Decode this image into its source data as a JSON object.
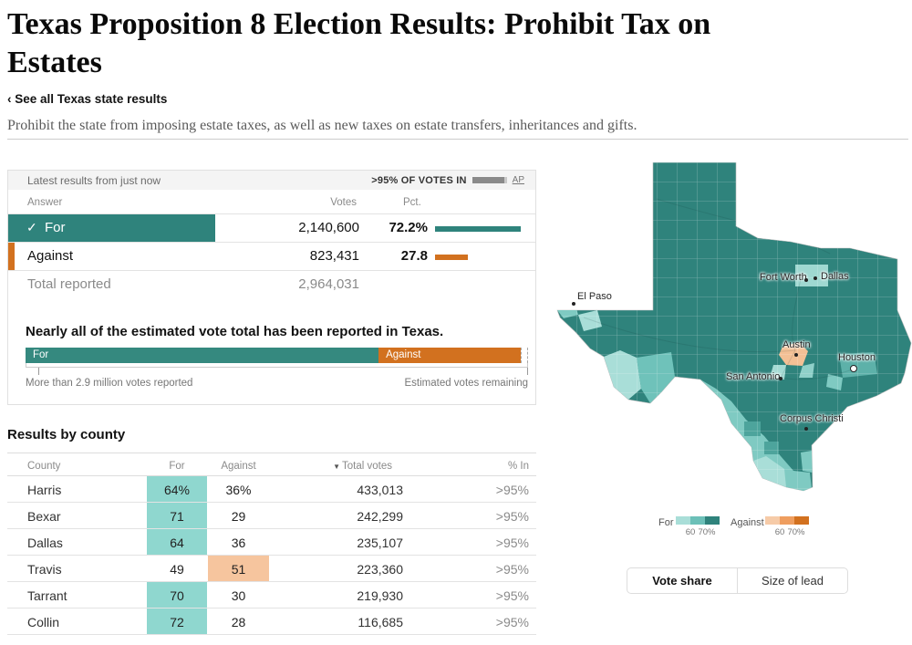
{
  "page": {
    "title": "Texas Proposition 8 Election Results: Prohibit Tax on Estates",
    "back_link": "‹ See all Texas state results",
    "description": "Prohibit the state from imposing estate taxes, as well as new taxes on estate transfers, inheritances and gifts."
  },
  "results": {
    "latest_label": "Latest results from just now",
    "votes_in_label": ">95% OF VOTES IN",
    "source_label": "AP",
    "columns": {
      "answer": "Answer",
      "votes": "Votes",
      "pct": "Pct."
    },
    "rows": [
      {
        "answer": "For",
        "check": "✓",
        "votes": "2,140,600",
        "pct": "72.2%",
        "pct_value": 72.2
      },
      {
        "answer": "Against",
        "votes": "823,431",
        "pct": "27.8",
        "pct_value": 27.8
      }
    ],
    "total": {
      "label": "Total reported",
      "votes": "2,964,031"
    }
  },
  "estimate": {
    "heading": "Nearly all of the estimated vote total has been reported in Texas.",
    "for_label": "For",
    "against_label": "Against",
    "for_pct": 72.2,
    "against_pct": 27.8,
    "left_note": "More than 2.9 million votes reported",
    "right_note": "Estimated votes remaining"
  },
  "county_table": {
    "heading": "Results by county",
    "columns": {
      "county": "County",
      "for": "For",
      "against": "Against",
      "total": "Total votes",
      "in": "% In",
      "sort_icon": "▼"
    },
    "rows": [
      {
        "county": "Harris",
        "for": "64%",
        "against": "36%",
        "total": "433,013",
        "in": ">95%",
        "winner": "for"
      },
      {
        "county": "Bexar",
        "for": "71",
        "against": "29",
        "total": "242,299",
        "in": ">95%",
        "winner": "for"
      },
      {
        "county": "Dallas",
        "for": "64",
        "against": "36",
        "total": "235,107",
        "in": ">95%",
        "winner": "for"
      },
      {
        "county": "Travis",
        "for": "49",
        "against": "51",
        "total": "223,360",
        "in": ">95%",
        "winner": "against"
      },
      {
        "county": "Tarrant",
        "for": "70",
        "against": "30",
        "total": "219,930",
        "in": ">95%",
        "winner": "for"
      },
      {
        "county": "Collin",
        "for": "72",
        "against": "28",
        "total": "116,685",
        "in": ">95%",
        "winner": "for"
      }
    ]
  },
  "map": {
    "cities": [
      {
        "name": "El Paso"
      },
      {
        "name": "Fort Worth"
      },
      {
        "name": "Dallas"
      },
      {
        "name": "Austin"
      },
      {
        "name": "Houston"
      },
      {
        "name": "San Antonio"
      },
      {
        "name": "Corpus Christi"
      }
    ],
    "legend": {
      "for_label": "For",
      "against_label": "Against",
      "tick_60": "60",
      "tick_70": "70%",
      "for_colors": [
        "#a9ded8",
        "#6cc0b8",
        "#2f837c"
      ],
      "against_colors": [
        "#f6cba8",
        "#ef9e5f",
        "#d2711f"
      ]
    },
    "toggle": {
      "vote_share": "Vote share",
      "size_of_lead": "Size of lead"
    }
  },
  "colors": {
    "teal": "#2f837c",
    "orange": "#d2711f",
    "teal_highlight": "#8fd7cf",
    "orange_highlight": "#f6c59e"
  }
}
